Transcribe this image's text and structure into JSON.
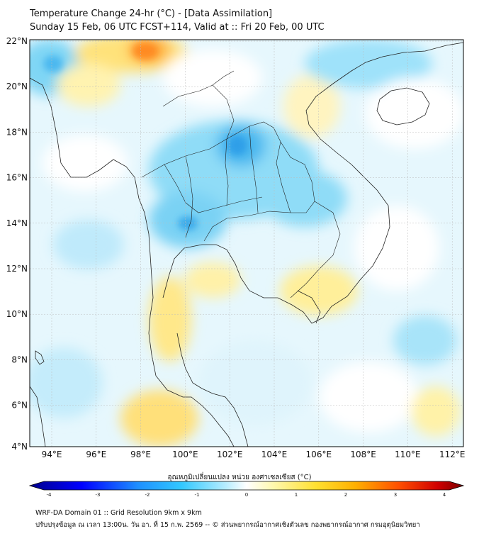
{
  "header": {
    "title": "Temperature Change 24-hr (°C) - [Data Assimilation]",
    "subtitle": "Sunday 15 Feb, 06 UTC FCST+114, Valid at :: Fri 20 Feb, 00 UTC"
  },
  "map": {
    "type": "temperature-change-map",
    "lon_range": [
      93,
      112.5
    ],
    "lat_range": [
      4,
      22.2
    ],
    "lon_ticks": [
      "94°E",
      "96°E",
      "98°E",
      "100°E",
      "102°E",
      "104°E",
      "106°E",
      "108°E",
      "110°E",
      "112°E"
    ],
    "lat_ticks": [
      "22°N",
      "20°N",
      "18°N",
      "16°N",
      "14°N",
      "12°N",
      "10°N",
      "8°N",
      "6°N",
      "4°N"
    ]
  },
  "colorbar": {
    "label": "อุณหภูมิเปลี่ยนแปลง หน่วย องศาเซลเซียส (°C)",
    "ticks": [
      "-4",
      "-3",
      "-2",
      "-1",
      "0",
      "1",
      "2",
      "3",
      "4"
    ],
    "range": [
      -4,
      4
    ],
    "colors": [
      "#00008b",
      "#0000ff",
      "#1e90ff",
      "#32c8ff",
      "#b4ecff",
      "#ffffff",
      "#fff8b0",
      "#ffd000",
      "#ff8000",
      "#e00000",
      "#7a0000"
    ]
  },
  "footer": {
    "line1": "WRF-DA Domain 01 :: Grid Resolution 9km x 9km",
    "line2": "ปรับปรุงข้อมูล ณ เวลา 13:00น. วัน อา. ที่ 15 ก.พ. 2569 -- © ส่วนพยากรณ์อากาศเชิงตัวเลข กองพยากรณ์อากาศ กรมอุตุนิยมวิทยา"
  }
}
